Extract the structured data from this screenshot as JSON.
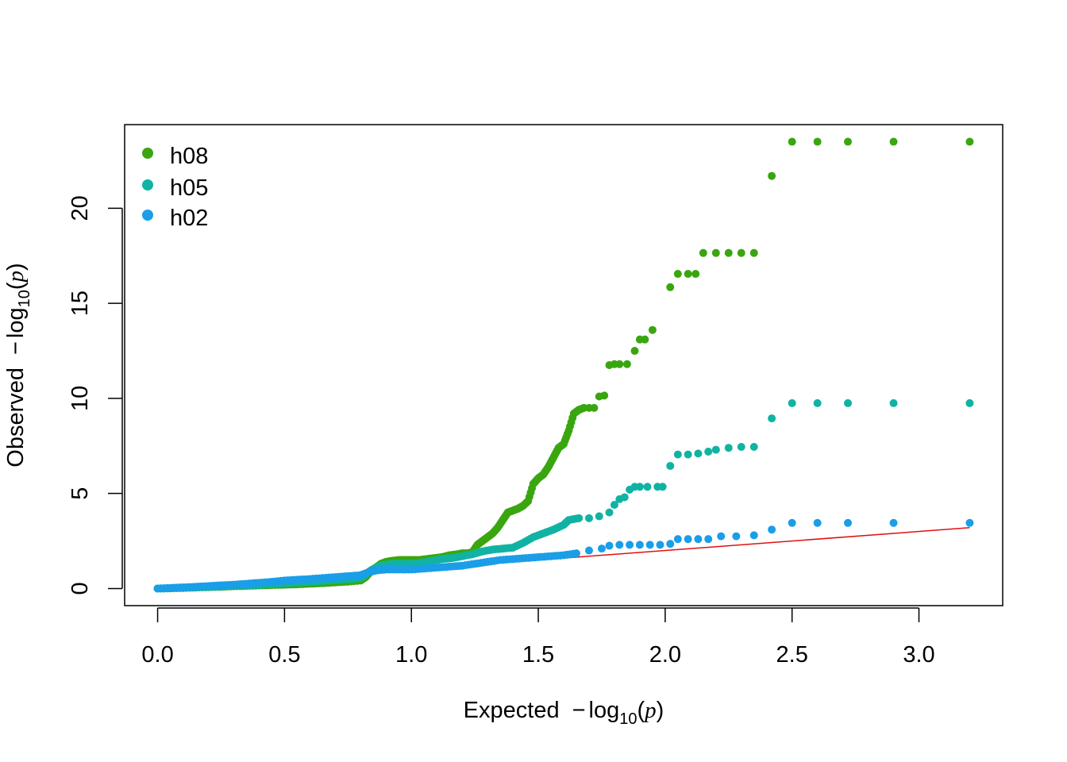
{
  "colors": {
    "h08": "#3aa60f",
    "h05": "#10b3a3",
    "h02": "#1a9ee8",
    "reference": "#e01010"
  },
  "chart_data": {
    "type": "scatter",
    "title": "",
    "xlabel": "Expected",
    "ylabel": "Observed",
    "axis_label_math": {
      "minus": "−",
      "log": "log",
      "base": "10",
      "open": "(",
      "p": "p",
      "close": ")"
    },
    "xlim": [
      -0.13,
      3.33
    ],
    "ylim": [
      -0.9,
      24.4
    ],
    "x_ticks": [
      0.0,
      0.5,
      1.0,
      1.5,
      2.0,
      2.5,
      3.0
    ],
    "x_tick_labels": [
      "0.0",
      "0.5",
      "1.0",
      "1.5",
      "2.0",
      "2.5",
      "3.0"
    ],
    "y_ticks": [
      0,
      5,
      10,
      15,
      20
    ],
    "y_tick_labels": [
      "0",
      "5",
      "10",
      "15",
      "20"
    ],
    "legend": {
      "position": "top-left",
      "entries": [
        {
          "label": "h08",
          "color": "#3aa60f"
        },
        {
          "label": "h05",
          "color": "#10b3a3"
        },
        {
          "label": "h02",
          "color": "#1a9ee8"
        }
      ]
    },
    "reference_line": {
      "x": [
        0,
        3.2
      ],
      "y": [
        0,
        3.2
      ],
      "color": "#e01010"
    },
    "series": [
      {
        "name": "h08",
        "color": "#3aa60f",
        "points": [
          [
            0.0,
            0.0
          ],
          [
            0.05,
            0.01
          ],
          [
            0.1,
            0.03
          ],
          [
            0.15,
            0.05
          ],
          [
            0.2,
            0.07
          ],
          [
            0.25,
            0.09
          ],
          [
            0.3,
            0.12
          ],
          [
            0.35,
            0.14
          ],
          [
            0.4,
            0.16
          ],
          [
            0.45,
            0.18
          ],
          [
            0.5,
            0.2
          ],
          [
            0.55,
            0.22
          ],
          [
            0.6,
            0.25
          ],
          [
            0.65,
            0.28
          ],
          [
            0.7,
            0.32
          ],
          [
            0.75,
            0.36
          ],
          [
            0.8,
            0.42
          ],
          [
            0.82,
            0.6
          ],
          [
            0.84,
            0.9
          ],
          [
            0.86,
            1.1
          ],
          [
            0.88,
            1.3
          ],
          [
            0.9,
            1.4
          ],
          [
            0.92,
            1.45
          ],
          [
            0.95,
            1.5
          ],
          [
            0.98,
            1.5
          ],
          [
            1.0,
            1.5
          ],
          [
            1.03,
            1.5
          ],
          [
            1.06,
            1.55
          ],
          [
            1.09,
            1.6
          ],
          [
            1.12,
            1.65
          ],
          [
            1.15,
            1.75
          ],
          [
            1.18,
            1.8
          ],
          [
            1.2,
            1.85
          ],
          [
            1.22,
            1.85
          ],
          [
            1.24,
            1.9
          ],
          [
            1.26,
            2.3
          ],
          [
            1.28,
            2.5
          ],
          [
            1.3,
            2.7
          ],
          [
            1.32,
            2.9
          ],
          [
            1.34,
            3.2
          ],
          [
            1.36,
            3.6
          ],
          [
            1.38,
            4.0
          ],
          [
            1.4,
            4.1
          ],
          [
            1.42,
            4.2
          ],
          [
            1.44,
            4.35
          ],
          [
            1.46,
            4.6
          ],
          [
            1.48,
            5.5
          ],
          [
            1.5,
            5.8
          ],
          [
            1.52,
            6.0
          ],
          [
            1.54,
            6.4
          ],
          [
            1.56,
            6.9
          ],
          [
            1.58,
            7.4
          ],
          [
            1.6,
            7.6
          ],
          [
            1.62,
            8.3
          ],
          [
            1.64,
            9.2
          ],
          [
            1.66,
            9.4
          ],
          [
            1.68,
            9.5
          ],
          [
            1.7,
            9.5
          ],
          [
            1.72,
            9.5
          ],
          [
            1.74,
            10.1
          ],
          [
            1.76,
            10.15
          ],
          [
            1.78,
            11.75
          ],
          [
            1.8,
            11.8
          ],
          [
            1.82,
            11.8
          ],
          [
            1.85,
            11.8
          ],
          [
            1.88,
            12.5
          ],
          [
            1.9,
            13.1
          ],
          [
            1.92,
            13.1
          ],
          [
            1.95,
            13.6
          ],
          [
            2.02,
            15.85
          ],
          [
            2.05,
            16.55
          ],
          [
            2.09,
            16.55
          ],
          [
            2.12,
            16.55
          ],
          [
            2.15,
            17.65
          ],
          [
            2.2,
            17.65
          ],
          [
            2.25,
            17.65
          ],
          [
            2.3,
            17.65
          ],
          [
            2.35,
            17.65
          ],
          [
            2.42,
            21.7
          ],
          [
            2.5,
            23.5
          ],
          [
            2.6,
            23.5
          ],
          [
            2.72,
            23.5
          ],
          [
            2.9,
            23.5
          ],
          [
            3.2,
            23.5
          ]
        ]
      },
      {
        "name": "h05",
        "color": "#10b3a3",
        "points": [
          [
            0.0,
            0.0
          ],
          [
            0.05,
            0.02
          ],
          [
            0.1,
            0.04
          ],
          [
            0.15,
            0.06
          ],
          [
            0.2,
            0.08
          ],
          [
            0.25,
            0.11
          ],
          [
            0.3,
            0.14
          ],
          [
            0.35,
            0.17
          ],
          [
            0.4,
            0.2
          ],
          [
            0.45,
            0.24
          ],
          [
            0.5,
            0.28
          ],
          [
            0.55,
            0.32
          ],
          [
            0.6,
            0.36
          ],
          [
            0.65,
            0.4
          ],
          [
            0.7,
            0.45
          ],
          [
            0.75,
            0.5
          ],
          [
            0.8,
            0.55
          ],
          [
            0.82,
            0.75
          ],
          [
            0.84,
            0.95
          ],
          [
            0.86,
            1.1
          ],
          [
            0.88,
            1.2
          ],
          [
            0.9,
            1.25
          ],
          [
            0.93,
            1.3
          ],
          [
            0.96,
            1.3
          ],
          [
            1.0,
            1.3
          ],
          [
            1.04,
            1.35
          ],
          [
            1.08,
            1.45
          ],
          [
            1.12,
            1.55
          ],
          [
            1.16,
            1.6
          ],
          [
            1.2,
            1.7
          ],
          [
            1.24,
            1.8
          ],
          [
            1.28,
            1.95
          ],
          [
            1.32,
            2.05
          ],
          [
            1.36,
            2.1
          ],
          [
            1.4,
            2.15
          ],
          [
            1.44,
            2.4
          ],
          [
            1.48,
            2.7
          ],
          [
            1.52,
            2.9
          ],
          [
            1.56,
            3.1
          ],
          [
            1.6,
            3.35
          ],
          [
            1.62,
            3.6
          ],
          [
            1.66,
            3.7
          ],
          [
            1.7,
            3.7
          ],
          [
            1.74,
            3.8
          ],
          [
            1.78,
            4.0
          ],
          [
            1.8,
            4.4
          ],
          [
            1.82,
            4.7
          ],
          [
            1.84,
            4.8
          ],
          [
            1.86,
            5.2
          ],
          [
            1.88,
            5.35
          ],
          [
            1.9,
            5.35
          ],
          [
            1.93,
            5.35
          ],
          [
            1.97,
            5.35
          ],
          [
            1.99,
            5.35
          ],
          [
            2.02,
            6.45
          ],
          [
            2.05,
            7.05
          ],
          [
            2.09,
            7.05
          ],
          [
            2.13,
            7.1
          ],
          [
            2.17,
            7.2
          ],
          [
            2.2,
            7.3
          ],
          [
            2.25,
            7.4
          ],
          [
            2.3,
            7.45
          ],
          [
            2.35,
            7.45
          ],
          [
            2.42,
            8.95
          ],
          [
            2.5,
            9.75
          ],
          [
            2.6,
            9.75
          ],
          [
            2.72,
            9.75
          ],
          [
            2.9,
            9.75
          ],
          [
            3.2,
            9.75
          ]
        ]
      },
      {
        "name": "h02",
        "color": "#1a9ee8",
        "points": [
          [
            0.0,
            0.0
          ],
          [
            0.05,
            0.03
          ],
          [
            0.1,
            0.06
          ],
          [
            0.15,
            0.09
          ],
          [
            0.2,
            0.13
          ],
          [
            0.25,
            0.17
          ],
          [
            0.3,
            0.2
          ],
          [
            0.35,
            0.25
          ],
          [
            0.4,
            0.3
          ],
          [
            0.45,
            0.35
          ],
          [
            0.5,
            0.42
          ],
          [
            0.55,
            0.46
          ],
          [
            0.6,
            0.5
          ],
          [
            0.65,
            0.55
          ],
          [
            0.7,
            0.6
          ],
          [
            0.75,
            0.65
          ],
          [
            0.8,
            0.7
          ],
          [
            0.83,
            0.85
          ],
          [
            0.86,
            0.95
          ],
          [
            0.9,
            1.0
          ],
          [
            0.95,
            1.0
          ],
          [
            1.0,
            1.0
          ],
          [
            1.05,
            1.05
          ],
          [
            1.1,
            1.1
          ],
          [
            1.15,
            1.15
          ],
          [
            1.2,
            1.2
          ],
          [
            1.25,
            1.3
          ],
          [
            1.3,
            1.4
          ],
          [
            1.35,
            1.5
          ],
          [
            1.4,
            1.55
          ],
          [
            1.45,
            1.6
          ],
          [
            1.5,
            1.65
          ],
          [
            1.55,
            1.7
          ],
          [
            1.6,
            1.75
          ],
          [
            1.65,
            1.85
          ],
          [
            1.7,
            2.0
          ],
          [
            1.75,
            2.1
          ],
          [
            1.78,
            2.25
          ],
          [
            1.82,
            2.3
          ],
          [
            1.86,
            2.3
          ],
          [
            1.9,
            2.3
          ],
          [
            1.94,
            2.3
          ],
          [
            1.98,
            2.3
          ],
          [
            2.02,
            2.35
          ],
          [
            2.05,
            2.6
          ],
          [
            2.09,
            2.6
          ],
          [
            2.13,
            2.6
          ],
          [
            2.17,
            2.6
          ],
          [
            2.22,
            2.75
          ],
          [
            2.28,
            2.75
          ],
          [
            2.35,
            2.8
          ],
          [
            2.42,
            3.1
          ],
          [
            2.5,
            3.45
          ],
          [
            2.6,
            3.45
          ],
          [
            2.72,
            3.45
          ],
          [
            2.9,
            3.45
          ],
          [
            3.2,
            3.45
          ]
        ]
      }
    ]
  }
}
